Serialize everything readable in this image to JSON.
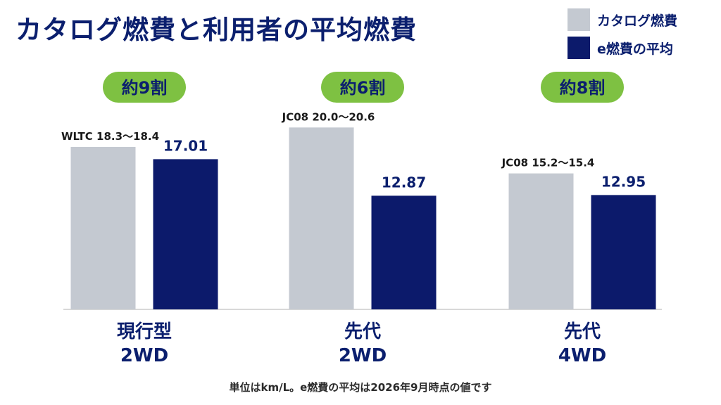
{
  "title": "カタログ燃費と利用者の平均燃費",
  "legend": [
    {
      "label": "カタログ燃費",
      "color": "#c4c9d1"
    },
    {
      "label": "e燃費の平均",
      "color": "#0c1a6b"
    }
  ],
  "colors": {
    "catalog": "#c4c9d1",
    "average": "#0c1a6b",
    "pill": "#7ec142",
    "axis": "#cccccc"
  },
  "footnote": "単位はkm/L。e燃費の平均は2026年9月時点の値です",
  "chart_data": {
    "type": "bar",
    "title": "カタログ燃費と利用者の平均燃費",
    "ylim": [
      0,
      21.5
    ],
    "groups": [
      {
        "category": [
          "現行型",
          "2WD"
        ],
        "ratio": "約9割",
        "catalog_label": "WLTC 18.3〜18.4",
        "catalog": 18.4,
        "average_label": "17.01",
        "average": 17.01
      },
      {
        "category": [
          "先代",
          "2WD"
        ],
        "ratio": "約6割",
        "catalog_label": "JC08 20.0〜20.6",
        "catalog": 20.6,
        "average_label": "12.87",
        "average": 12.87
      },
      {
        "category": [
          "先代",
          "4WD"
        ],
        "ratio": "約8割",
        "catalog_label": "JC08 15.2〜15.4",
        "catalog": 15.4,
        "average_label": "12.95",
        "average": 12.95
      }
    ],
    "series": [
      {
        "name": "カタログ燃費"
      },
      {
        "name": "e燃費の平均"
      }
    ]
  }
}
